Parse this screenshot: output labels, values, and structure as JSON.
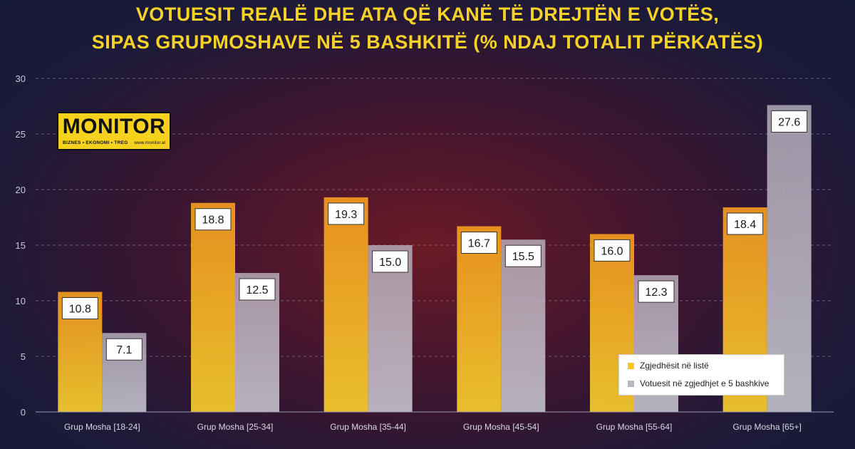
{
  "title": {
    "line1": "VOTUESIT REALË DHE ATA QË KANË TË DREJTËN E VOTËS,",
    "line2": "SIPAS GRUPMOSHAVE NË 5 BASHKITË (% NDAJ TOTALIT PËRKATËS)"
  },
  "logo": {
    "name": "MONITOR",
    "tagline": "BIZNES • EKONOMI • TREG",
    "url": "www.monitor.al"
  },
  "colors": {
    "series1": "#f5a623",
    "series2": "#c9ccd6",
    "title": "#f5d22a"
  },
  "chart_data": {
    "type": "bar",
    "categories": [
      "Grup Mosha [18-24]",
      "Grup Mosha [25-34]",
      "Grup Mosha [35-44]",
      "Grup Mosha [45-54]",
      "Grup Mosha [55-64]",
      "Grup Mosha [65+]"
    ],
    "series": [
      {
        "name": "Zgjedhësit në listë",
        "values": [
          10.8,
          18.8,
          19.3,
          16.7,
          16.0,
          18.4
        ]
      },
      {
        "name": "Votuesit në zgjedhjet e 5 bashkive",
        "values": [
          7.1,
          12.5,
          15.0,
          15.5,
          12.3,
          27.6
        ]
      }
    ],
    "data_labels": [
      [
        "10.8",
        "18.8",
        "19.3",
        "16.7",
        "16.0",
        "18.4"
      ],
      [
        "7.1",
        "12.5",
        "15.0",
        "15.5",
        "12.3",
        "27.6"
      ]
    ],
    "ylim": [
      0,
      30
    ],
    "yticks": [
      "0",
      "5",
      "10",
      "15",
      "20",
      "25",
      "30"
    ],
    "grid": true,
    "legend_position": "bottom-right"
  }
}
